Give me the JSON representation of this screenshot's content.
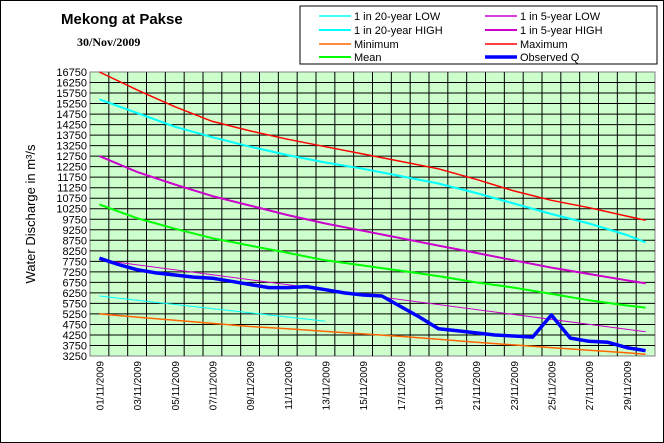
{
  "chart_data": {
    "type": "line",
    "title": "Mekong at Pakse",
    "subtitle": "30/Nov/2009",
    "ylabel": "Water Discharge in m³/s",
    "xlabel": "",
    "ylim": [
      3250,
      16750
    ],
    "ytick_step": 500,
    "y_ticks": [
      "3250",
      "3750",
      "4250",
      "4750",
      "5250",
      "5750",
      "6250",
      "6750",
      "7250",
      "7750",
      "8250",
      "8750",
      "9250",
      "9750",
      "10250",
      "10750",
      "11250",
      "11750",
      "12250",
      "12750",
      "13250",
      "13750",
      "14250",
      "14750",
      "15250",
      "15750",
      "16250",
      "16750"
    ],
    "x_ticks": [
      "01/11/2009",
      "03/11/2009",
      "05/11/2009",
      "07/11/2009",
      "09/11/2009",
      "11/11/2009",
      "13/11/2009",
      "15/11/2009",
      "17/11/2009",
      "19/11/2009",
      "21/11/2009",
      "23/11/2009",
      "25/11/2009",
      "27/11/2009",
      "29/11/2009"
    ],
    "x_days": [
      1,
      30
    ],
    "grid": true,
    "legend_position": "top",
    "series": [
      {
        "name": "1 in 20-year LOW",
        "color": "#00ffff",
        "width": 1,
        "x": [
          1,
          13
        ],
        "y": [
          6100,
          4900
        ]
      },
      {
        "name": "1 in 5-year LOW",
        "color": "#cc00cc",
        "width": 1,
        "x": [
          1,
          30
        ],
        "y": [
          7820,
          4400
        ]
      },
      {
        "name": "1 in 20-year HIGH",
        "color": "#00ffff",
        "width": 2,
        "x": [
          1,
          3,
          5,
          7,
          9,
          11,
          13,
          15,
          17,
          19,
          21,
          23,
          25,
          27,
          29,
          30
        ],
        "y": [
          15450,
          14800,
          14150,
          13650,
          13200,
          12800,
          12450,
          12150,
          11800,
          11450,
          11000,
          10500,
          10000,
          9550,
          9000,
          8650
        ]
      },
      {
        "name": "1 in 5-year HIGH",
        "color": "#cc00cc",
        "width": 2,
        "x": [
          1,
          3,
          5,
          7,
          9,
          11,
          13,
          15,
          17,
          19,
          21,
          23,
          25,
          27,
          29,
          30
        ],
        "y": [
          12750,
          12000,
          11400,
          10850,
          10400,
          9950,
          9550,
          9200,
          8850,
          8500,
          8150,
          7800,
          7450,
          7150,
          6850,
          6700
        ]
      },
      {
        "name": "Minimum",
        "color": "#ff6600",
        "width": 1.5,
        "x": [
          1,
          3,
          5,
          7,
          9,
          11,
          13,
          15,
          17,
          19,
          21,
          23,
          25,
          27,
          29,
          30
        ],
        "y": [
          5250,
          5100,
          4950,
          4800,
          4650,
          4550,
          4420,
          4300,
          4180,
          4050,
          3900,
          3780,
          3650,
          3520,
          3400,
          3330
        ]
      },
      {
        "name": "Maximum",
        "color": "#ff0000",
        "width": 1.5,
        "x": [
          1,
          3,
          5,
          7,
          9,
          11,
          13,
          15,
          17,
          19,
          21,
          23,
          25,
          27,
          29,
          30
        ],
        "y": [
          16750,
          15900,
          15100,
          14400,
          13950,
          13550,
          13200,
          12850,
          12500,
          12150,
          11650,
          11100,
          10650,
          10300,
          9900,
          9700
        ]
      },
      {
        "name": "Mean",
        "color": "#00ff00",
        "width": 2,
        "x": [
          1,
          3,
          5,
          7,
          9,
          11,
          13,
          15,
          17,
          19,
          21,
          23,
          25,
          27,
          29,
          30
        ],
        "y": [
          10450,
          9800,
          9300,
          8850,
          8500,
          8150,
          7800,
          7550,
          7300,
          7050,
          6750,
          6500,
          6200,
          5900,
          5650,
          5550
        ]
      },
      {
        "name": "Observed Q",
        "color": "#0000ff",
        "width": 3.5,
        "x": [
          1,
          2,
          3,
          4,
          5,
          6,
          7,
          8,
          9,
          10,
          11,
          12,
          13,
          14,
          15,
          16,
          17,
          18,
          19,
          20,
          21,
          22,
          23,
          24,
          25,
          26,
          27,
          28,
          29,
          30
        ],
        "y": [
          7900,
          7600,
          7350,
          7200,
          7100,
          7000,
          6950,
          6800,
          6650,
          6500,
          6500,
          6550,
          6400,
          6250,
          6150,
          6100,
          5600,
          5100,
          4550,
          4450,
          4350,
          4250,
          4200,
          4150,
          5200,
          4100,
          3950,
          3900,
          3650,
          3500
        ]
      }
    ]
  }
}
